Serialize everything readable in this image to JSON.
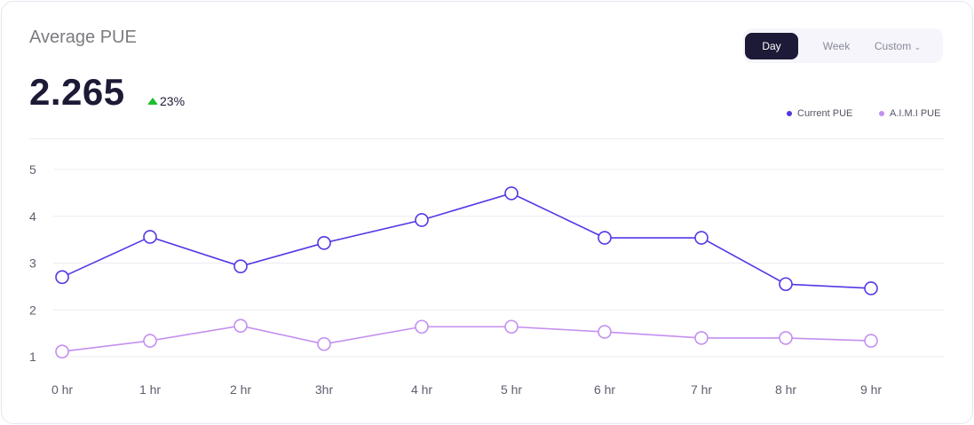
{
  "header": {
    "title": "Average PUE",
    "value": "2.265",
    "delta": "23%",
    "delta_icon": "triangle-up-icon"
  },
  "range_selector": {
    "options": [
      "Day",
      "Week",
      "Custom"
    ],
    "selected": "Day"
  },
  "colors": {
    "current": "#5338e6",
    "aimi": "#c48ff0",
    "up": "#1dbf2e"
  },
  "chart_data": {
    "type": "line",
    "categories": [
      "0 hr",
      "1 hr",
      "2 hr",
      "3hr",
      "4 hr",
      "5 hr",
      "6 hr",
      "7 hr",
      "8 hr",
      "9 hr"
    ],
    "y_ticks": [
      "1",
      "2",
      "3",
      "4",
      "5"
    ],
    "ylim": [
      1,
      5
    ],
    "grid": true,
    "legend_position": "top-right",
    "series": [
      {
        "name": "Current PUE",
        "values": [
          2.7,
          3.56,
          2.93,
          3.43,
          3.92,
          4.49,
          3.54,
          3.54,
          2.55,
          2.46
        ]
      },
      {
        "name": "A.I.M.I PUE",
        "values": [
          1.11,
          1.34,
          1.66,
          1.27,
          1.64,
          1.64,
          1.53,
          1.4,
          1.4,
          1.34
        ]
      }
    ]
  }
}
